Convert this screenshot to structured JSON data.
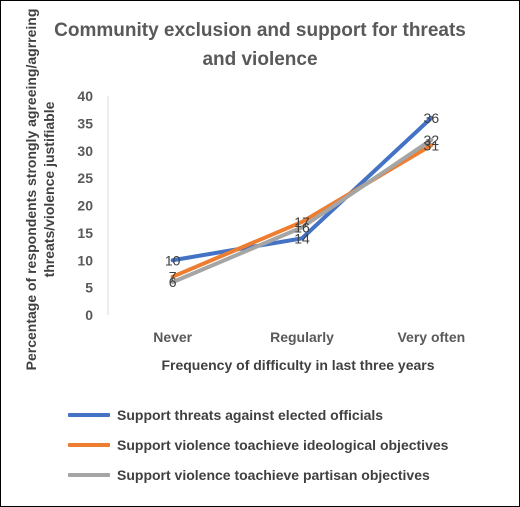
{
  "chart_data": {
    "type": "line",
    "title": "Community exclusion and support for threats and violence",
    "xlabel": "Frequency of  difficulty in last three years",
    "ylabel": "Percentage of respondents strongly agreeing/agrreing threats/violence justifiable",
    "categories": [
      "Never",
      "Regularly",
      "Very often"
    ],
    "ylim": [
      0,
      40
    ],
    "yticks": [
      0,
      5,
      10,
      15,
      20,
      25,
      30,
      35,
      40
    ],
    "grid": false,
    "legend_position": "bottom",
    "series": [
      {
        "name": "Support threats against elected officials",
        "values": [
          10,
          14,
          36
        ],
        "color": "#4472C4"
      },
      {
        "name": "Support violence toachieve ideological objectives",
        "values": [
          7,
          17,
          31
        ],
        "color": "#ED7D31"
      },
      {
        "name": "Support violence toachieve partisan objectives",
        "values": [
          6,
          16,
          32
        ],
        "color": "#A5A5A5"
      }
    ]
  }
}
